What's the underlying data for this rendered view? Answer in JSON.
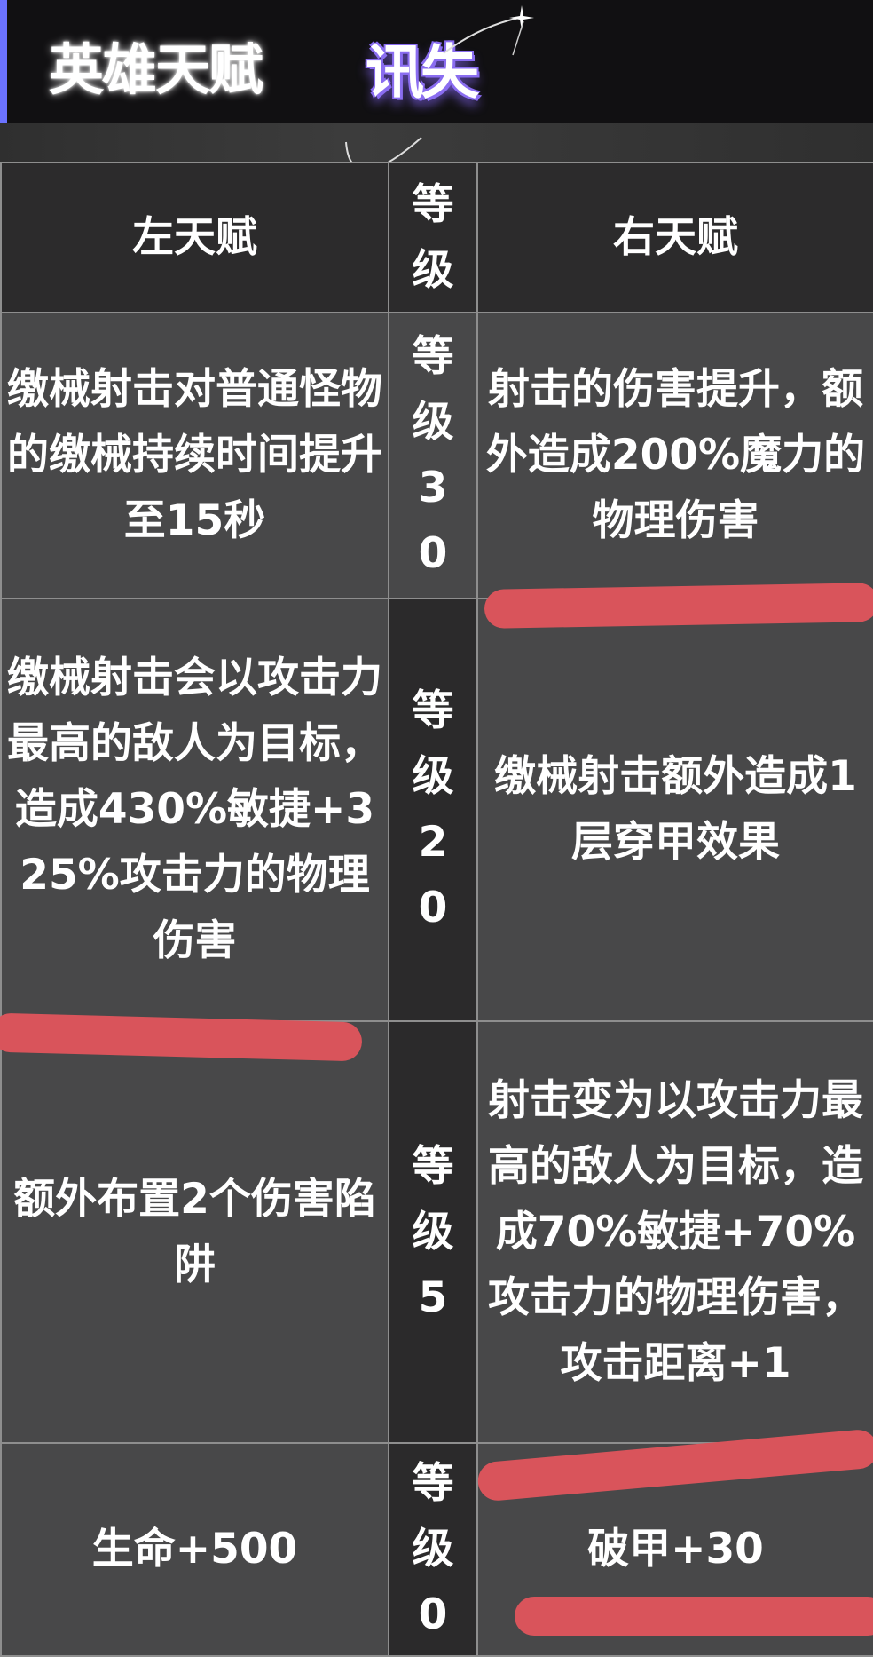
{
  "header": {
    "title": "英雄天赋",
    "brand": "讯失"
  },
  "table": {
    "columns": [
      "左天赋",
      "等级",
      "右天赋"
    ],
    "rows": [
      {
        "left": "缴械射击对普通怪物的缴械持续时间提升至15秒",
        "level": "等级30",
        "right": "射击的伤害提升，额外造成200%魔力的物理伤害"
      },
      {
        "left": "缴械射击会以攻击力最高的敌人为目标，造成430%敏捷+325%攻击力的物理伤害",
        "level": "等级20",
        "right": "缴械射击额外造成1层穿甲效果"
      },
      {
        "left": "额外布置2个伤害陷阱",
        "level": "等级5",
        "right": "射击变为以攻击力最高的敌人为目标，造成70%敏捷+70%攻击力的物理伤害，攻击距离+1"
      },
      {
        "left": "生命+500",
        "level": "等级0",
        "right": "破甲+30"
      }
    ]
  },
  "colors": {
    "accent": "#6b72ff",
    "brand_glow": "#8a6df0",
    "highlight_mark": "#d9545b"
  }
}
